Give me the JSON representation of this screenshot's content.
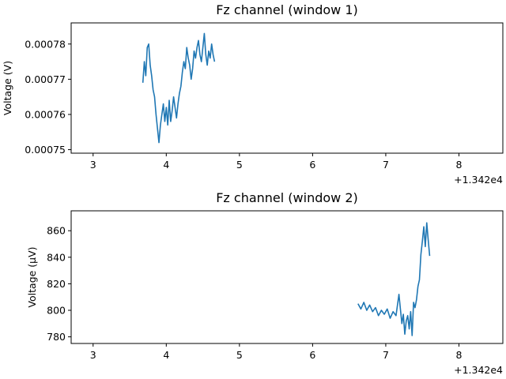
{
  "chart_data": [
    {
      "type": "line",
      "title": "Fz channel (window 1)",
      "xlabel": "",
      "ylabel": "Voltage (V)",
      "x_offset_label": "+1.342e4",
      "xlim": [
        2.7,
        8.6
      ],
      "ylim": [
        0.000749,
        0.000786
      ],
      "x_ticks": [
        3,
        4,
        5,
        6,
        7,
        8
      ],
      "x_tick_labels": [
        "3",
        "4",
        "5",
        "6",
        "7",
        "8"
      ],
      "y_ticks": [
        0.00075,
        0.00076,
        0.00077,
        0.00078
      ],
      "y_tick_labels": [
        "0.00075",
        "0.00076",
        "0.00077",
        "0.00078"
      ],
      "grid": false,
      "series": [
        {
          "color": "#1f77b4",
          "x": [
            3.68,
            3.7,
            3.72,
            3.74,
            3.76,
            3.78,
            3.8,
            3.82,
            3.84,
            3.86,
            3.88,
            3.9,
            3.92,
            3.94,
            3.96,
            3.98,
            4.0,
            4.02,
            4.04,
            4.06,
            4.08,
            4.1,
            4.12,
            4.14,
            4.16,
            4.18,
            4.2,
            4.22,
            4.24,
            4.26,
            4.28,
            4.3,
            4.32,
            4.34,
            4.36,
            4.38,
            4.4,
            4.42,
            4.44,
            4.46,
            4.48,
            4.5,
            4.52,
            4.54,
            4.56,
            4.58,
            4.6,
            4.62,
            4.64,
            4.66
          ],
          "y": [
            0.000769,
            0.000775,
            0.000771,
            0.000779,
            0.00078,
            0.000774,
            0.000771,
            0.000767,
            0.000765,
            0.00076,
            0.000756,
            0.000752,
            0.000757,
            0.00076,
            0.000763,
            0.000758,
            0.000762,
            0.000757,
            0.000764,
            0.000758,
            0.000761,
            0.000765,
            0.000762,
            0.000759,
            0.000763,
            0.000766,
            0.000768,
            0.000772,
            0.000775,
            0.000773,
            0.000779,
            0.000776,
            0.000774,
            0.00077,
            0.000773,
            0.000778,
            0.000776,
            0.000779,
            0.000781,
            0.000777,
            0.000775,
            0.000779,
            0.000783,
            0.000777,
            0.000774,
            0.000778,
            0.000776,
            0.00078,
            0.000777,
            0.000775
          ]
        }
      ]
    },
    {
      "type": "line",
      "title": "Fz channel (window 2)",
      "xlabel": "",
      "ylabel": "Voltage (µV)",
      "x_offset_label": "+1.342e4",
      "xlim": [
        2.7,
        8.6
      ],
      "ylim": [
        775,
        875
      ],
      "x_ticks": [
        3,
        4,
        5,
        6,
        7,
        8
      ],
      "x_tick_labels": [
        "3",
        "4",
        "5",
        "6",
        "7",
        "8"
      ],
      "y_ticks": [
        780,
        800,
        820,
        840,
        860
      ],
      "y_tick_labels": [
        "780",
        "800",
        "820",
        "840",
        "860"
      ],
      "grid": false,
      "series": [
        {
          "color": "#1f77b4",
          "x": [
            6.62,
            6.66,
            6.7,
            6.74,
            6.78,
            6.82,
            6.86,
            6.9,
            6.94,
            6.98,
            7.02,
            7.06,
            7.1,
            7.14,
            7.18,
            7.2,
            7.22,
            7.24,
            7.26,
            7.28,
            7.3,
            7.32,
            7.34,
            7.36,
            7.38,
            7.4,
            7.42,
            7.44,
            7.46,
            7.48,
            7.5,
            7.52,
            7.54,
            7.56,
            7.58,
            7.6
          ],
          "y": [
            805,
            801,
            806,
            800,
            804,
            799,
            802,
            796,
            800,
            797,
            801,
            794,
            799,
            796,
            812,
            801,
            790,
            797,
            782,
            792,
            796,
            786,
            799,
            781,
            806,
            802,
            808,
            818,
            823,
            842,
            852,
            863,
            848,
            866,
            853,
            841
          ]
        }
      ]
    }
  ]
}
